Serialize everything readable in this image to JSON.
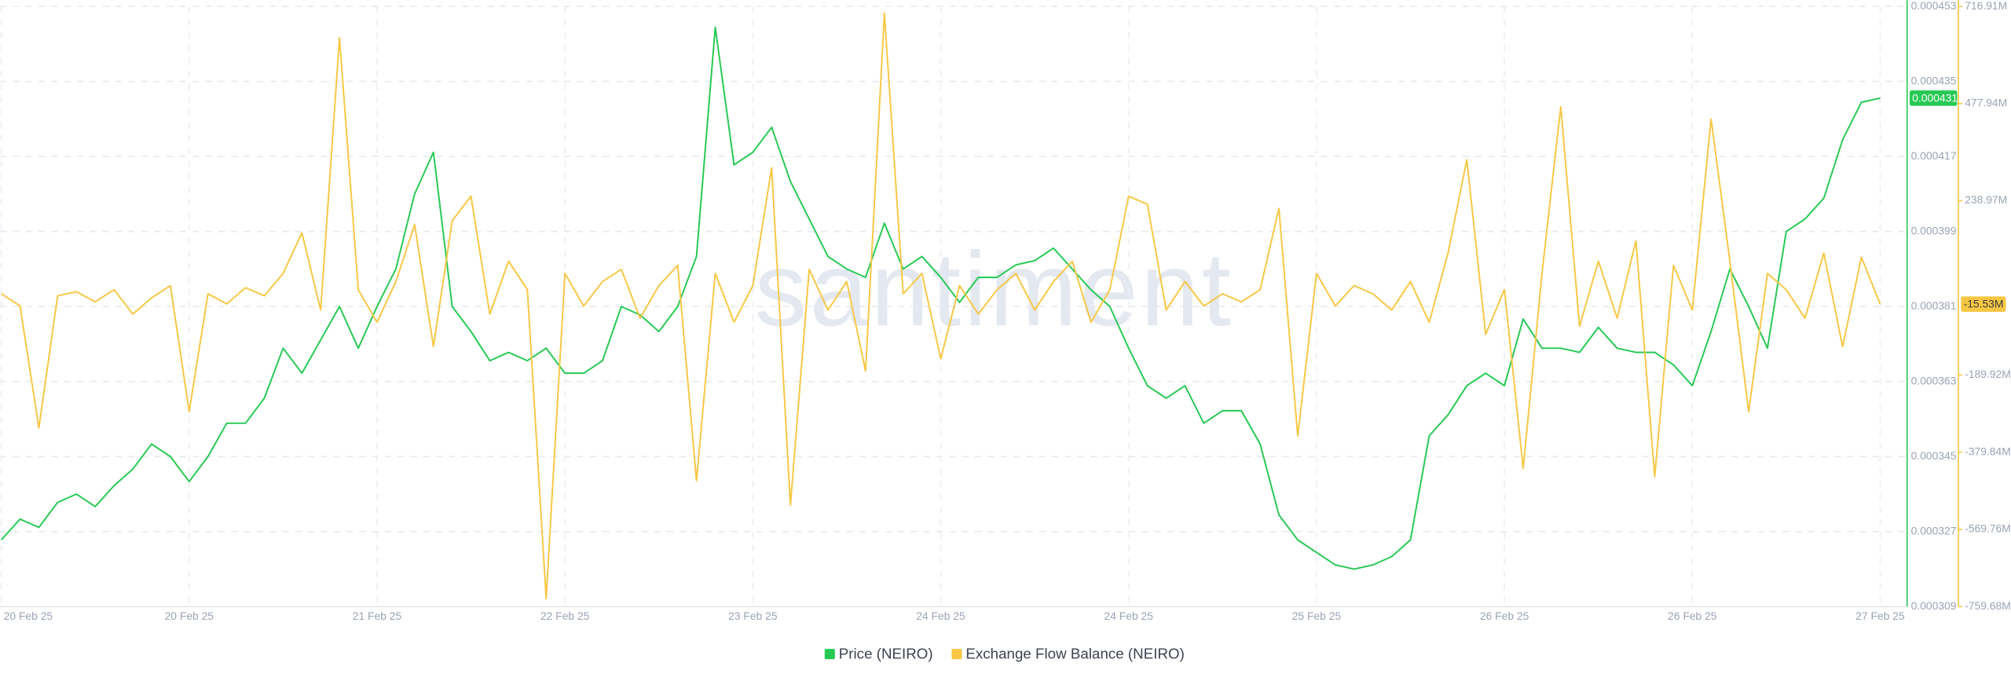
{
  "chart_data": {
    "type": "line",
    "watermark": "santiment",
    "categories": [
      "20 Feb 25",
      null,
      null,
      null,
      null,
      null,
      null,
      null,
      null,
      null,
      "20 Feb 25",
      null,
      null,
      null,
      null,
      null,
      null,
      null,
      null,
      null,
      "21 Feb 25",
      null,
      null,
      null,
      null,
      null,
      null,
      null,
      null,
      null,
      "22 Feb 25",
      null,
      null,
      null,
      null,
      null,
      null,
      null,
      null,
      null,
      "23 Feb 25",
      null,
      null,
      null,
      null,
      null,
      null,
      null,
      null,
      null,
      "24 Feb 25",
      null,
      null,
      null,
      null,
      null,
      null,
      null,
      null,
      null,
      "24 Feb 25",
      null,
      null,
      null,
      null,
      null,
      null,
      null,
      null,
      null,
      "25 Feb 25",
      null,
      null,
      null,
      null,
      null,
      null,
      null,
      null,
      null,
      "26 Feb 25",
      null,
      null,
      null,
      null,
      null,
      null,
      null,
      null,
      null,
      "26 Feb 25",
      null,
      null,
      null,
      null,
      null,
      null,
      null,
      null,
      null,
      "27 Feb 25"
    ],
    "ylim": [
      0.000309,
      0.000453
    ],
    "yticks": [
      0.000309,
      0.000327,
      0.000345,
      0.000363,
      0.000381,
      0.000399,
      0.000417,
      0.000435,
      0.000453
    ],
    "y2lim": [
      -759.68,
      716.91
    ],
    "y2ticks": [
      {
        "value": -759.68,
        "label": "-759.68M"
      },
      {
        "value": -569.76,
        "label": "-569.76M"
      },
      {
        "value": -379.84,
        "label": "-379.84M"
      },
      {
        "value": -189.92,
        "label": "-189.92M"
      },
      {
        "value": 238.97,
        "label": "238.97M"
      },
      {
        "value": 477.94,
        "label": "477.94M"
      },
      {
        "value": 716.91,
        "label": "716.91M"
      }
    ],
    "grid": true,
    "legend": "bottom",
    "series": [
      {
        "name": "Price (NEIRO)",
        "color": "#26c953",
        "axis": "y",
        "last_label": "0.000431",
        "values": [
          0.000325,
          0.00033,
          0.000328,
          0.000334,
          0.000336,
          0.000333,
          0.000338,
          0.000342,
          0.000348,
          0.000345,
          0.000339,
          0.000345,
          0.000353,
          0.000353,
          0.000359,
          0.000371,
          0.000365,
          0.000373,
          0.000381,
          0.000371,
          0.000381,
          0.00039,
          0.000408,
          0.000418,
          0.000381,
          0.000375,
          0.000368,
          0.00037,
          0.000368,
          0.000371,
          0.000365,
          0.000365,
          0.000368,
          0.000381,
          0.000379,
          0.000375,
          0.000381,
          0.000393,
          0.000448,
          0.000415,
          0.000418,
          0.000424,
          0.000411,
          0.000402,
          0.000393,
          0.00039,
          0.000388,
          0.000401,
          0.00039,
          0.000393,
          0.000388,
          0.000382,
          0.000388,
          0.000388,
          0.000391,
          0.000392,
          0.000395,
          0.00039,
          0.000385,
          0.000381,
          0.000371,
          0.000362,
          0.000359,
          0.000362,
          0.000353,
          0.000356,
          0.000356,
          0.000348,
          0.000331,
          0.000325,
          0.000322,
          0.000319,
          0.000318,
          0.000319,
          0.000321,
          0.000325,
          0.00035,
          0.000355,
          0.000362,
          0.000365,
          0.000362,
          0.000378,
          0.000371,
          0.000371,
          0.00037,
          0.000376,
          0.000371,
          0.00037,
          0.00037,
          0.000367,
          0.000362,
          0.000375,
          0.00039,
          0.000381,
          0.000371,
          0.000399,
          0.000402,
          0.000407,
          0.000421,
          0.00043,
          0.000431
        ]
      },
      {
        "name": "Exchange Flow Balance (NEIRO)",
        "color": "#f7c744",
        "axis": "y2",
        "last_label": "-15.53M",
        "values": [
          10,
          -20,
          -320,
          5,
          15,
          -10,
          20,
          -40,
          0,
          30,
          -280,
          10,
          -15,
          25,
          5,
          60,
          160,
          -30,
          640,
          20,
          -60,
          40,
          180,
          -120,
          190,
          250,
          -40,
          90,
          20,
          -740,
          60,
          -20,
          40,
          70,
          -50,
          30,
          80,
          -450,
          60,
          -60,
          30,
          320,
          -510,
          70,
          -30,
          40,
          -180,
          700,
          10,
          60,
          -150,
          30,
          -40,
          20,
          60,
          -30,
          40,
          90,
          -60,
          20,
          250,
          230,
          -30,
          40,
          -20,
          10,
          -10,
          20,
          220,
          -340,
          60,
          -20,
          30,
          10,
          -30,
          40,
          -60,
          110,
          340,
          -90,
          20,
          -420,
          60,
          470,
          -70,
          90,
          -50,
          140,
          -440,
          80,
          -30,
          440,
          90,
          -280,
          60,
          20,
          -50,
          110,
          -120,
          100,
          -15.53
        ]
      }
    ]
  }
}
